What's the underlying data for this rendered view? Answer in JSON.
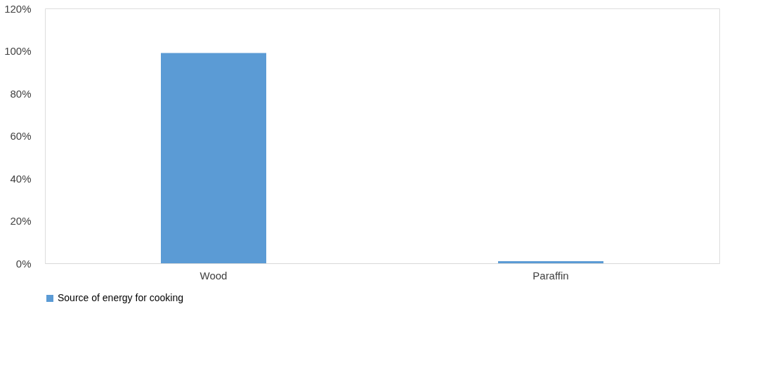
{
  "chart_data": {
    "type": "bar",
    "categories": [
      "Wood",
      "Paraffin"
    ],
    "series": [
      {
        "name": "Source of energy for cooking",
        "color": "#5b9bd5",
        "values": [
          99,
          1
        ]
      }
    ],
    "ylim": [
      0,
      120
    ],
    "yticks": [
      {
        "value": 0,
        "label": "0%"
      },
      {
        "value": 20,
        "label": "20%"
      },
      {
        "value": 40,
        "label": "40%"
      },
      {
        "value": 60,
        "label": "60%"
      },
      {
        "value": 80,
        "label": "80%"
      },
      {
        "value": 100,
        "label": "100%"
      },
      {
        "value": 120,
        "label": "120%"
      }
    ],
    "grid": false,
    "legend": "bottom"
  }
}
